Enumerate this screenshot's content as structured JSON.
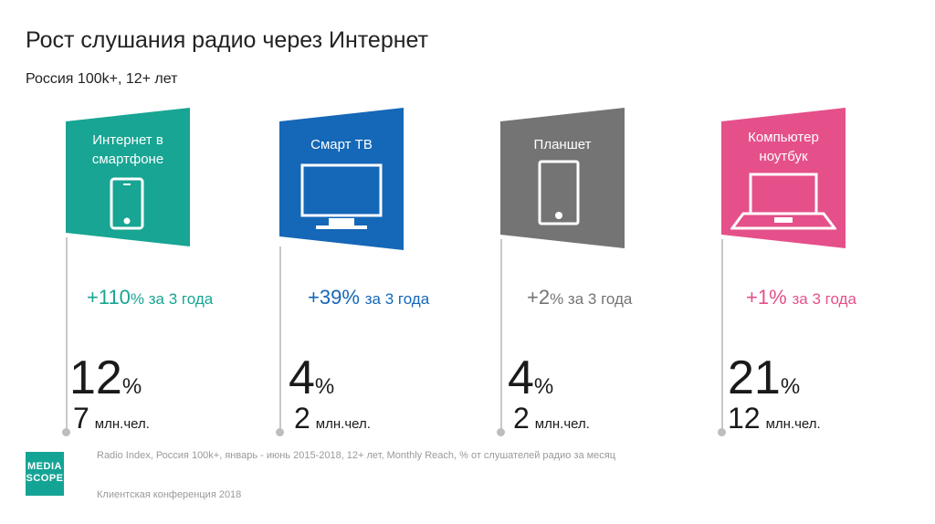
{
  "header": {
    "title": "Рост слушания радио через Интернет",
    "subtitle": "Россия 100k+, 12+ лет"
  },
  "colors": {
    "teal": "#18a593",
    "blue": "#1567b7",
    "gray": "#747474",
    "pink": "#e5508a"
  },
  "cards": [
    {
      "label_lines": [
        "Интернет в",
        "смартфоне"
      ],
      "icon": "smartphone-icon",
      "growth_value": "+110",
      "growth_suffix": "% за 3 года",
      "share_value": "12",
      "share_sign": "%",
      "reach_value": "7",
      "reach_unit": "млн.чел."
    },
    {
      "label_lines": [
        "Смарт ТВ"
      ],
      "icon": "tv-icon",
      "growth_value": "+39%",
      "growth_suffix": "за 3 года",
      "share_value": "4",
      "share_sign": "%",
      "reach_value": "2",
      "reach_unit": "млн.чел."
    },
    {
      "label_lines": [
        "Планшет"
      ],
      "icon": "tablet-icon",
      "growth_value": "+2",
      "growth_suffix": "% за 3 года",
      "share_value": "4",
      "share_sign": "%",
      "reach_value": "2",
      "reach_unit": "млн.чел."
    },
    {
      "label_lines": [
        "Компьютер",
        "ноутбук"
      ],
      "icon": "laptop-icon",
      "growth_value": "+1%",
      "growth_suffix": "за 3 года",
      "share_value": "21",
      "share_sign": "%",
      "reach_value": "12",
      "reach_unit": "млн.чел."
    }
  ],
  "logo": {
    "line1": "MEDIA",
    "line2": "SCOPE"
  },
  "footer": {
    "source": "Radio Index, Россия 100k+, январь - июнь 2015-2018, 12+ лет, Monthly Reach, % от слушателей радио за месяц",
    "conference": "Клиентская конференция 2018"
  }
}
